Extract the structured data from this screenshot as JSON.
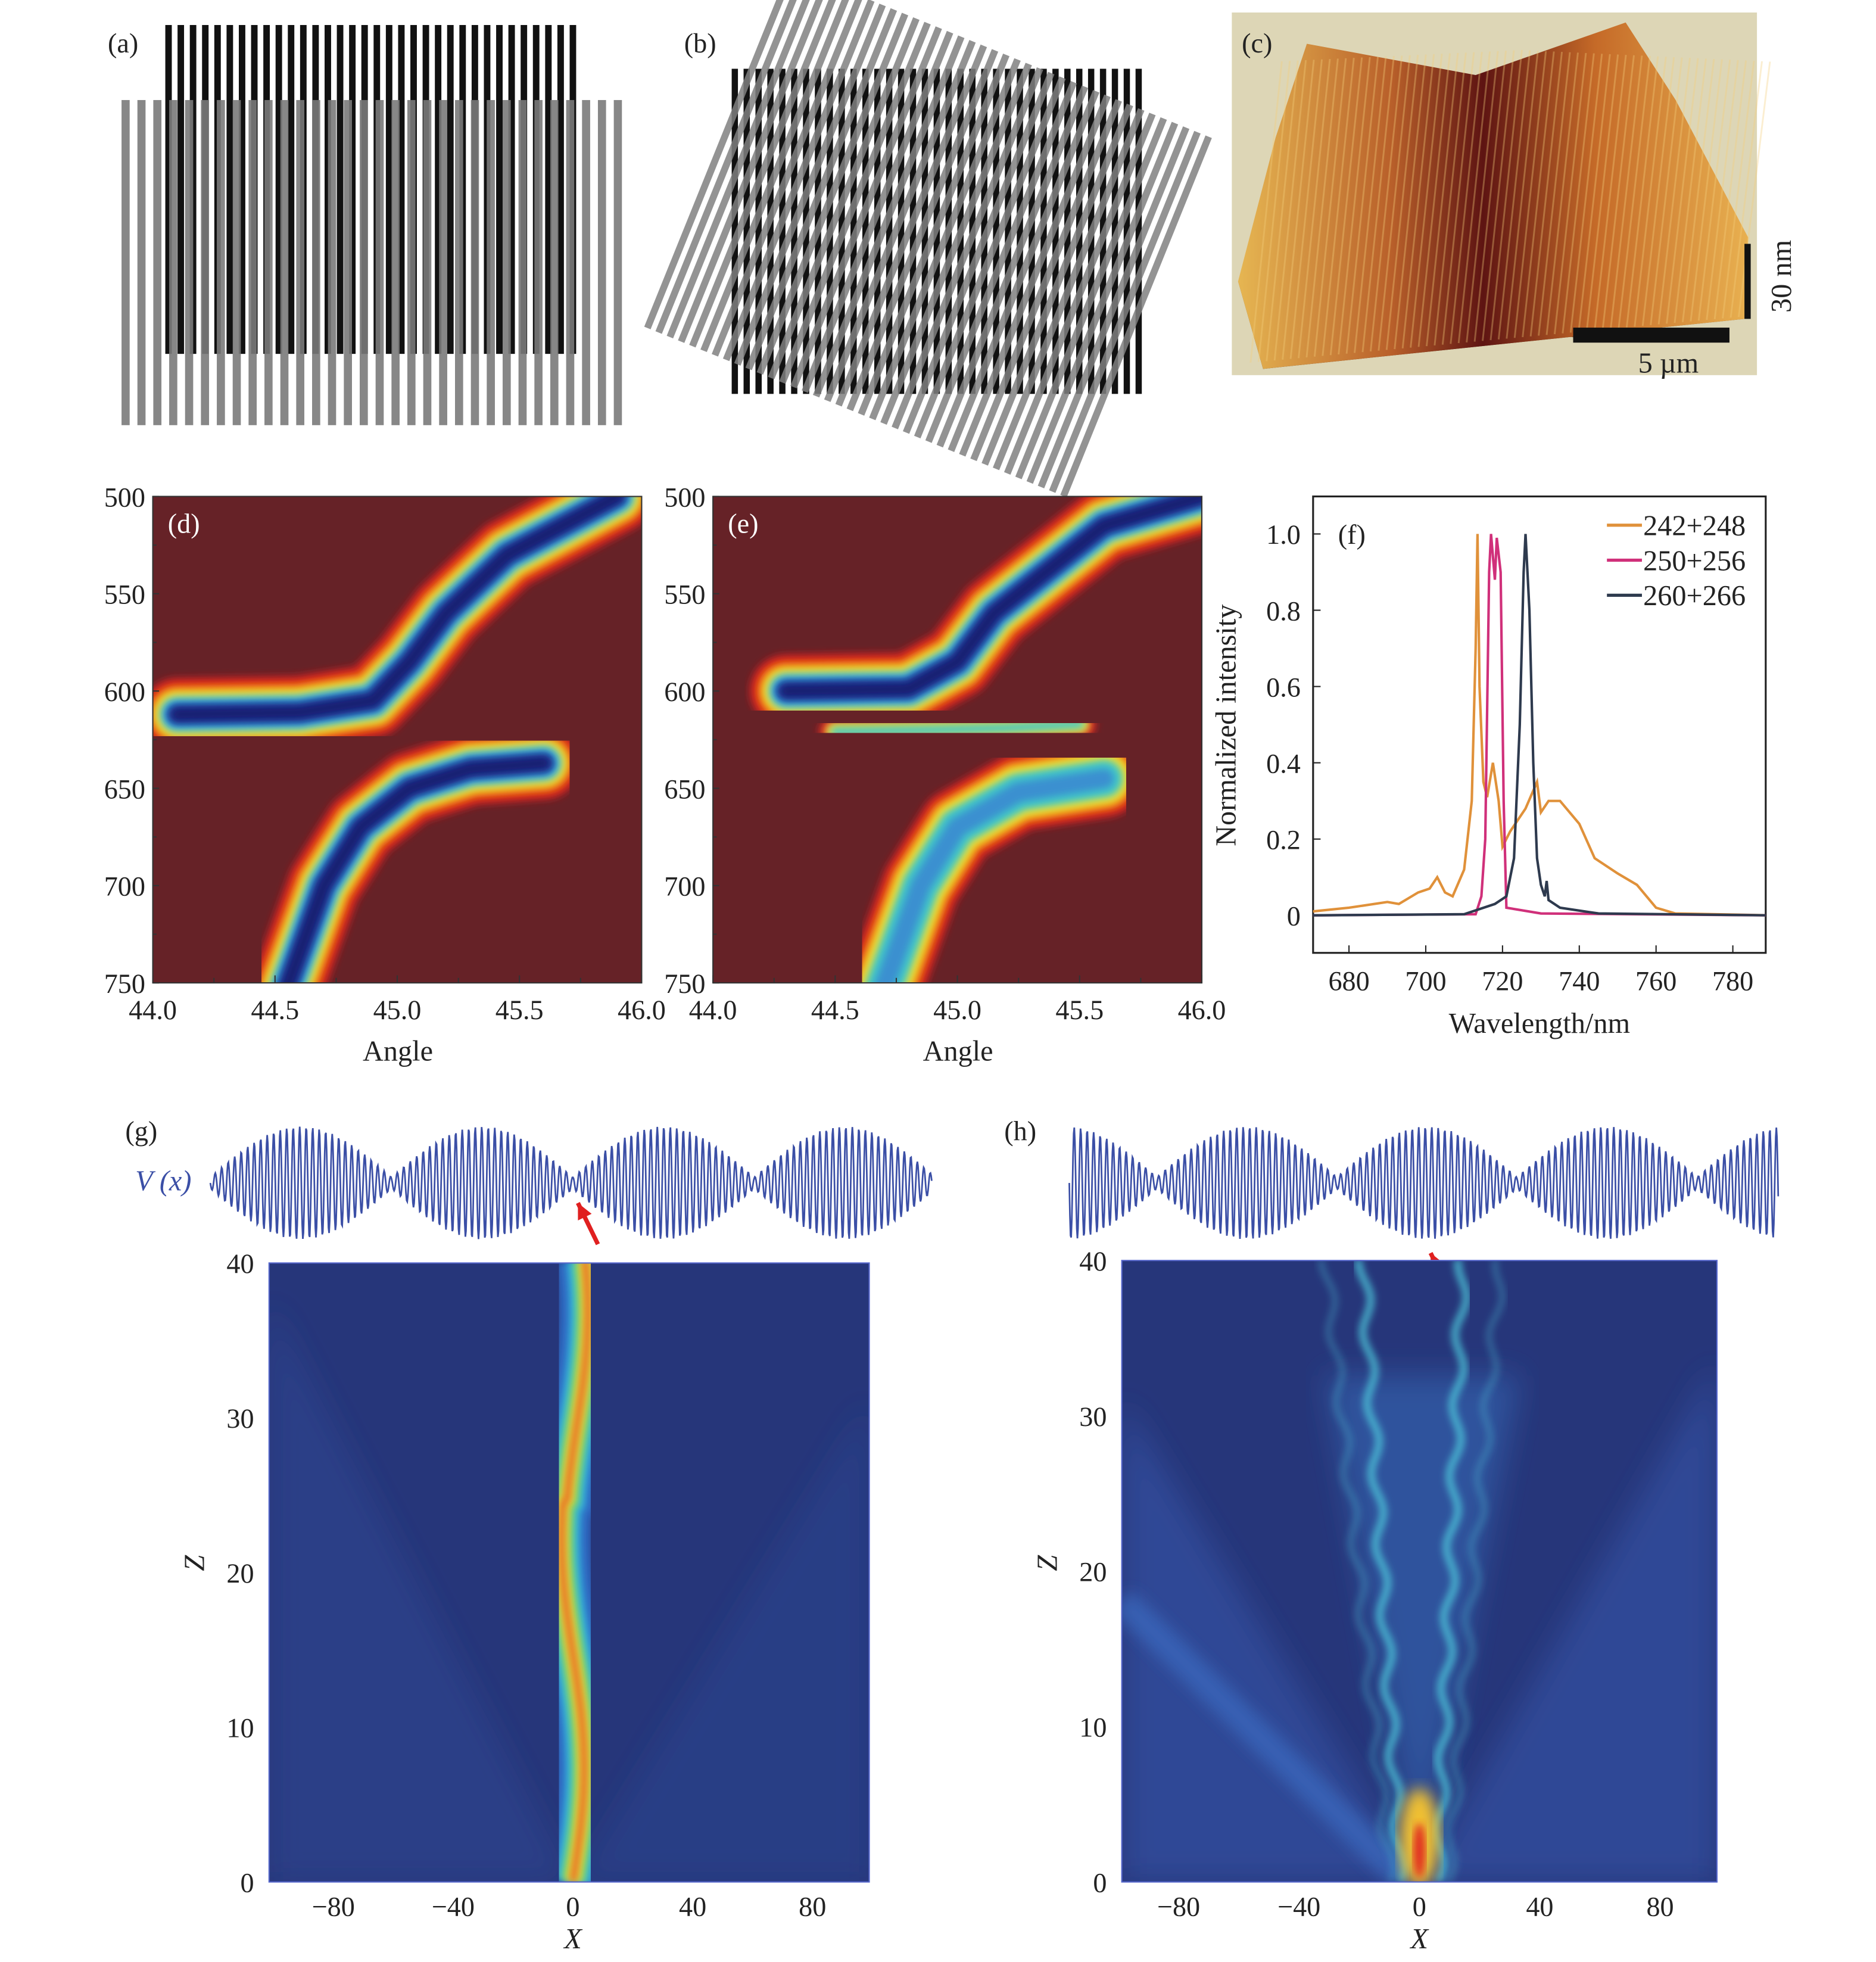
{
  "panels": {
    "a": {
      "label": "(a)"
    },
    "b": {
      "label": "(b)"
    },
    "c": {
      "label": "(c)",
      "scale_height": "30 nm",
      "scale_length": "5 µm"
    },
    "d": {
      "label": "(d)",
      "yticks": [
        "500",
        "550",
        "600",
        "650",
        "700",
        "750"
      ],
      "xticks": [
        "44.0",
        "44.5",
        "45.0",
        "45.5",
        "46.0"
      ],
      "xlabel": "Angle"
    },
    "e": {
      "label": "(e)",
      "yticks": [
        "500",
        "550",
        "600",
        "650",
        "700",
        "750"
      ],
      "xticks": [
        "44.0",
        "44.5",
        "45.0",
        "45.5",
        "46.0"
      ],
      "xlabel": "Angle"
    },
    "f": {
      "label": "(f)"
    },
    "g": {
      "label": "(g)",
      "potential_label": "V (x)",
      "yticks": [
        "0",
        "10",
        "20",
        "30",
        "40"
      ],
      "xticks": [
        "−80",
        "−40",
        "0",
        "40",
        "80"
      ],
      "xlabel": "X",
      "ylabel": "Z"
    },
    "h": {
      "label": "(h)",
      "yticks": [
        "0",
        "10",
        "20",
        "30",
        "40"
      ],
      "xticks": [
        "−80",
        "−40",
        "0",
        "40",
        "80"
      ],
      "xlabel": "X",
      "ylabel": "Z"
    }
  },
  "colors": {
    "heat_bg": "#662227",
    "beam_bg": "#26367a",
    "potential": "#3b4fa6",
    "arrow": "#e02020"
  },
  "chart_data": [
    {
      "panel": "f",
      "type": "line",
      "title": "",
      "xlabel": "Wavelength/nm",
      "ylabel": "Normalized intensity",
      "xlim": [
        670,
        790
      ],
      "ylim": [
        -0.1,
        1.1
      ],
      "xticks": [
        680,
        700,
        720,
        740,
        760,
        780
      ],
      "yticks": [
        0,
        0.2,
        0.4,
        0.6,
        0.8,
        1.0
      ],
      "ytick_labels": [
        "0",
        "0.2",
        "0.4",
        "0.6",
        "0.8",
        "1.0"
      ],
      "legend_position": "top-right",
      "series": [
        {
          "name": "242+248",
          "color": "#e0913a",
          "points": [
            [
              670,
              0.01
            ],
            [
              680,
              0.02
            ],
            [
              690,
              0.035
            ],
            [
              693,
              0.03
            ],
            [
              698,
              0.06
            ],
            [
              701,
              0.07
            ],
            [
              703,
              0.1
            ],
            [
              705,
              0.06
            ],
            [
              707,
              0.05
            ],
            [
              710,
              0.12
            ],
            [
              712,
              0.3
            ],
            [
              713,
              0.7
            ],
            [
              713.5,
              1.0
            ],
            [
              714,
              0.6
            ],
            [
              715,
              0.35
            ],
            [
              716,
              0.31
            ],
            [
              717.5,
              0.4
            ],
            [
              719,
              0.3
            ],
            [
              720,
              0.18
            ],
            [
              722,
              0.22
            ],
            [
              726,
              0.28
            ],
            [
              729,
              0.35
            ],
            [
              730,
              0.27
            ],
            [
              732,
              0.3
            ],
            [
              735,
              0.3
            ],
            [
              740,
              0.24
            ],
            [
              744,
              0.15
            ],
            [
              750,
              0.11
            ],
            [
              755,
              0.08
            ],
            [
              760,
              0.02
            ],
            [
              765,
              0.005
            ],
            [
              790,
              0.0
            ]
          ]
        },
        {
          "name": "250+256",
          "color": "#d0307a",
          "points": [
            [
              670,
              0
            ],
            [
              713,
              0.003
            ],
            [
              714.5,
              0.05
            ],
            [
              715.5,
              0.2
            ],
            [
              716.5,
              0.9
            ],
            [
              717,
              1.0
            ],
            [
              718,
              0.88
            ],
            [
              718.5,
              0.99
            ],
            [
              719.5,
              0.9
            ],
            [
              720.3,
              0.3
            ],
            [
              721,
              0.02
            ],
            [
              730,
              0.005
            ],
            [
              790,
              0
            ]
          ]
        },
        {
          "name": "260+266",
          "color": "#2e3a4e",
          "points": [
            [
              670,
              0
            ],
            [
              710,
              0.003
            ],
            [
              718,
              0.03
            ],
            [
              721,
              0.05
            ],
            [
              723,
              0.15
            ],
            [
              724.5,
              0.5
            ],
            [
              725.5,
              0.9
            ],
            [
              726,
              1.0
            ],
            [
              727,
              0.8
            ],
            [
              728,
              0.4
            ],
            [
              729,
              0.15
            ],
            [
              730,
              0.08
            ],
            [
              731,
              0.05
            ],
            [
              731.5,
              0.09
            ],
            [
              732,
              0.04
            ],
            [
              735,
              0.02
            ],
            [
              745,
              0.005
            ],
            [
              790,
              0
            ]
          ]
        }
      ]
    },
    {
      "panel": "d",
      "type": "heatmap",
      "xlabel": "Angle",
      "ylabel": "",
      "xlim": [
        44.0,
        46.0
      ],
      "ylim": [
        750,
        500
      ],
      "bands": [
        {
          "name": "upper",
          "points": [
            [
              44.1,
              612
            ],
            [
              44.6,
              611
            ],
            [
              44.9,
              605
            ],
            [
              45.05,
              585
            ],
            [
              45.2,
              560
            ],
            [
              45.45,
              530
            ],
            [
              45.9,
              500
            ]
          ]
        },
        {
          "name": "lower",
          "points": [
            [
              44.55,
              752
            ],
            [
              44.7,
              700
            ],
            [
              44.85,
              670
            ],
            [
              45.05,
              650
            ],
            [
              45.3,
              640
            ],
            [
              45.6,
              637
            ]
          ]
        }
      ]
    },
    {
      "panel": "e",
      "type": "heatmap",
      "xlabel": "Angle",
      "ylabel": "",
      "xlim": [
        44.0,
        46.0
      ],
      "ylim": [
        750,
        500
      ],
      "bands": [
        {
          "name": "upper",
          "points": [
            [
              44.3,
              600
            ],
            [
              44.8,
              599
            ],
            [
              45.0,
              585
            ],
            [
              45.15,
              560
            ],
            [
              45.4,
              535
            ],
            [
              45.6,
              515
            ],
            [
              46.0,
              500
            ]
          ]
        },
        {
          "name": "middle",
          "points": [
            [
              44.5,
              621
            ],
            [
              44.9,
              620
            ],
            [
              45.2,
              619
            ],
            [
              45.5,
              617
            ]
          ]
        },
        {
          "name": "lower",
          "points": [
            [
              44.7,
              752
            ],
            [
              44.85,
              700
            ],
            [
              45.0,
              670
            ],
            [
              45.25,
              652
            ],
            [
              45.6,
              645
            ]
          ]
        }
      ]
    }
  ]
}
